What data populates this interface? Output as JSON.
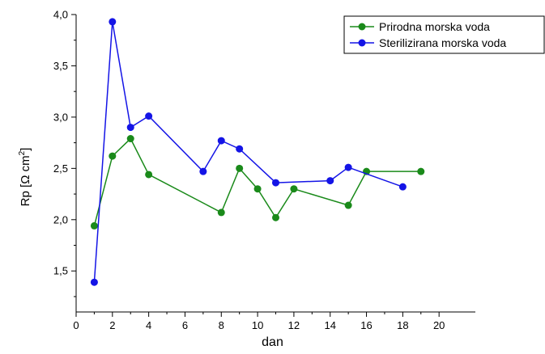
{
  "chart_data": {
    "type": "line",
    "xlabel": "dan",
    "ylabel": {
      "prefix": "Rp [",
      "omega": "Ω",
      "unit": " cm",
      "sup": "2",
      "suffix": "]"
    },
    "xlim": [
      0,
      22
    ],
    "ylim": [
      1.1,
      4.0
    ],
    "xticks": [
      "0",
      "2",
      "4",
      "6",
      "8",
      "10",
      "12",
      "14",
      "16",
      "18",
      "20"
    ],
    "yticks": [
      "1,5",
      "2,0",
      "2,5",
      "3,0",
      "3,5",
      "4,0"
    ],
    "ytick_values": [
      1.5,
      2.0,
      2.5,
      3.0,
      3.5,
      4.0
    ],
    "xtick_values": [
      0,
      2,
      4,
      6,
      8,
      10,
      12,
      14,
      16,
      18,
      20
    ],
    "legend_position": "top-right",
    "grid": false,
    "series": [
      {
        "name": "Prirodna morska voda",
        "color": "#1a8a1a",
        "x": [
          1,
          2,
          3,
          4,
          8,
          9,
          10,
          11,
          12,
          15,
          16,
          19
        ],
        "y": [
          1.94,
          2.62,
          2.79,
          2.44,
          2.07,
          2.5,
          2.3,
          2.02,
          2.3,
          2.14,
          2.47,
          2.47
        ]
      },
      {
        "name": "Sterilizirana morska voda",
        "color": "#1414e6",
        "x": [
          1,
          2,
          3,
          4,
          7,
          8,
          9,
          11,
          14,
          15,
          18
        ],
        "y": [
          1.39,
          3.93,
          2.9,
          3.01,
          2.47,
          2.77,
          2.69,
          2.36,
          2.38,
          2.51,
          2.32
        ]
      }
    ]
  }
}
